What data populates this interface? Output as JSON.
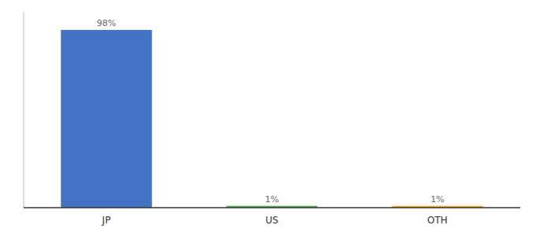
{
  "chart_data": {
    "type": "bar",
    "categories": [
      "JP",
      "US",
      "OTH"
    ],
    "values": [
      98,
      1,
      1
    ],
    "value_labels": [
      "98%",
      "1%",
      "1%"
    ],
    "colors": [
      "#4472c4",
      "#4caf50",
      "#f5a623"
    ],
    "ylim": [
      0,
      108
    ],
    "data_labels": true,
    "tick_labels": "x",
    "grid": false
  }
}
